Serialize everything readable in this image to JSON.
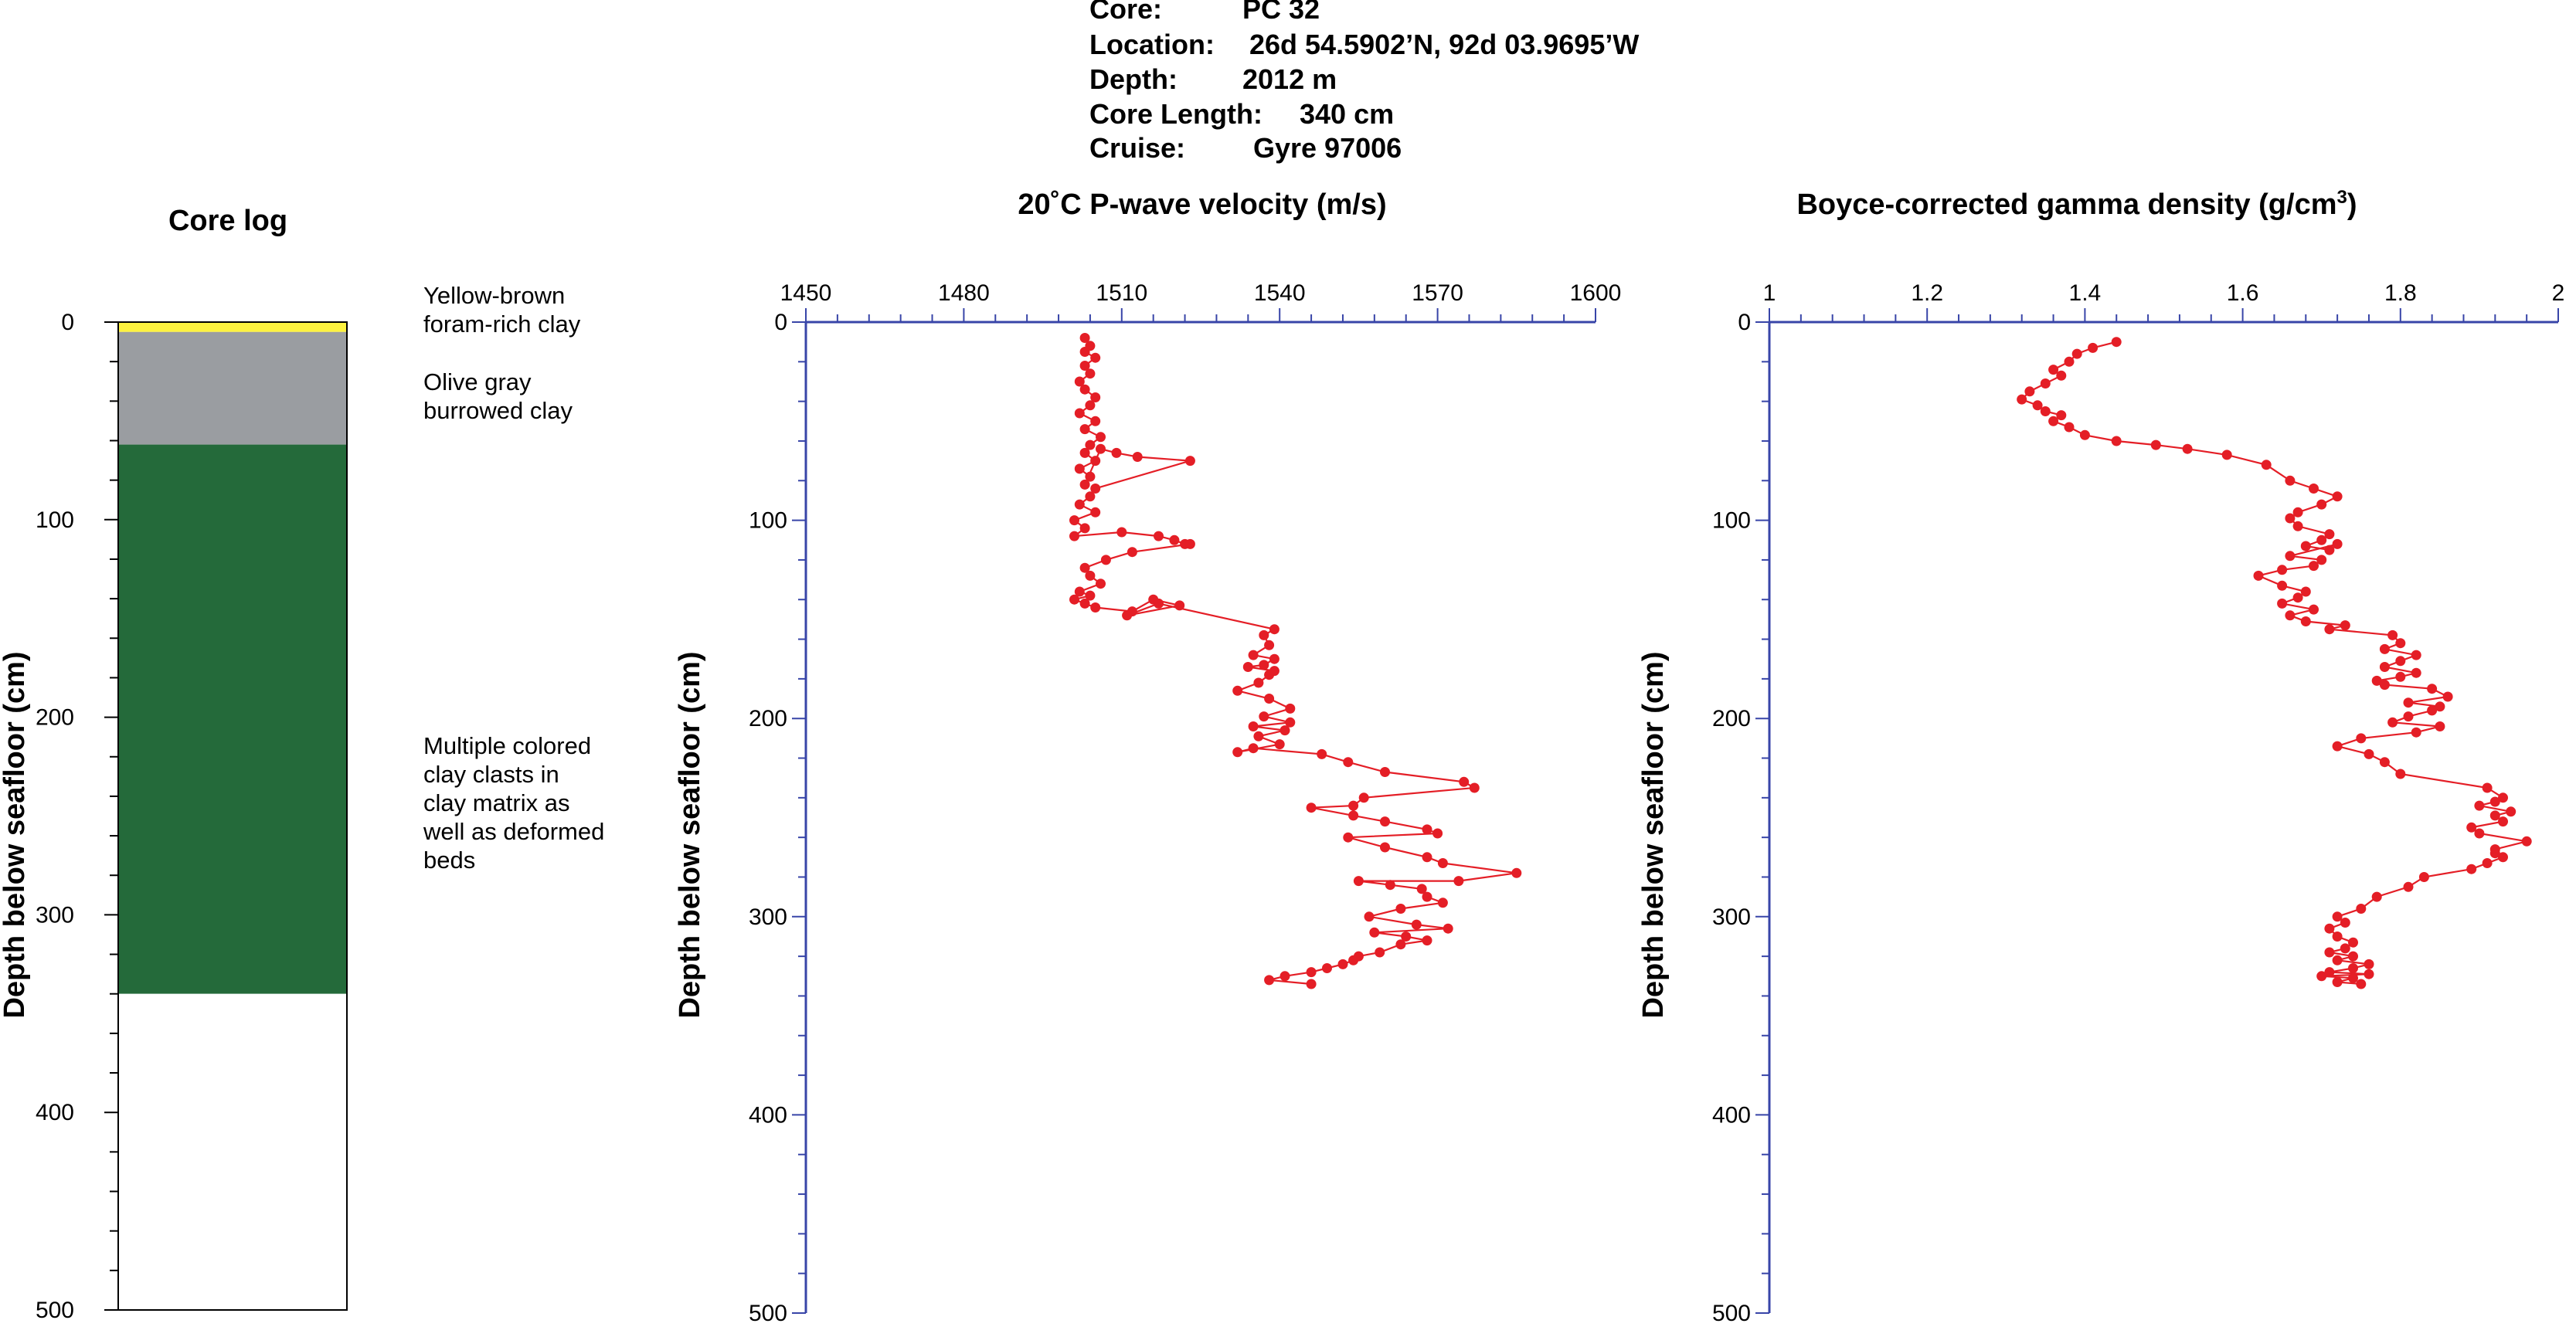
{
  "header": {
    "lines": [
      {
        "label": "Core:",
        "value": "PC 32"
      },
      {
        "label": "Location:",
        "value": "26d 54.5902’N, 92d 03.9695’W"
      },
      {
        "label": "Depth:",
        "value": "2012 m"
      },
      {
        "label": "Core Length:",
        "value": "340 cm"
      },
      {
        "label": "Cruise:",
        "value": "Gyre 97006"
      }
    ]
  },
  "core_log": {
    "title": "Core log",
    "ylabel": "Depth below seafloor (cm)",
    "yticks": [
      "0",
      "100",
      "200",
      "300",
      "400",
      "500"
    ],
    "units": [
      {
        "top": 0,
        "bottom": 5,
        "color": "#fdf23f",
        "label": [
          "Yellow-brown",
          "foram-rich clay"
        ]
      },
      {
        "top": 5,
        "bottom": 62,
        "color": "#9a9da1",
        "label": [
          "Olive gray",
          "burrowed clay"
        ]
      },
      {
        "top": 62,
        "bottom": 340,
        "color": "#246a3a",
        "label": [
          "Multiple colored",
          "clay clasts in",
          "clay matrix as",
          "well as deformed",
          "beds"
        ]
      },
      {
        "top": 340,
        "bottom": 500,
        "color": "#ffffff",
        "label": []
      }
    ]
  },
  "chart_data": [
    {
      "type": "line",
      "title": "20˚C P-wave velocity (m/s)",
      "ylabel": "Depth below seafloor (cm)",
      "xlim": [
        1450,
        1600
      ],
      "ylim": [
        0,
        500
      ],
      "xticks": [
        "1450",
        "1480",
        "1510",
        "1540",
        "1570",
        "1600"
      ],
      "yticks": [
        "0",
        "100",
        "200",
        "300",
        "400",
        "500"
      ],
      "color": "#e41e26",
      "series": [
        {
          "x": [
            1503,
            1504,
            1503,
            1505,
            1503,
            1504,
            1502,
            1503,
            1505,
            1504,
            1502,
            1505,
            1503,
            1506,
            1504,
            1503,
            1505,
            1502,
            1504,
            1503,
            1506,
            1509,
            1513,
            1523,
            1505,
            1504,
            1502,
            1505,
            1501,
            1503,
            1501,
            1510,
            1517,
            1520,
            1522,
            1523,
            1512,
            1507,
            1503,
            1504,
            1506,
            1502,
            1504,
            1501,
            1503,
            1505,
            1512,
            1516,
            1521,
            1511,
            1517,
            1539,
            1537,
            1538,
            1535,
            1539,
            1537,
            1534,
            1539,
            1538,
            1536,
            1532,
            1538,
            1542,
            1537,
            1542,
            1535,
            1541,
            1536,
            1540,
            1532,
            1535,
            1548,
            1553,
            1560,
            1575,
            1577,
            1556,
            1554,
            1546,
            1554,
            1560,
            1568,
            1570,
            1553,
            1560,
            1568,
            1571,
            1585,
            1574,
            1555,
            1561,
            1567,
            1568,
            1571,
            1563,
            1557,
            1566,
            1572,
            1558,
            1564,
            1568,
            1563,
            1559,
            1555,
            1554,
            1552,
            1549,
            1546,
            1541,
            1538,
            1546
          ],
          "y": [
            8,
            12,
            15,
            18,
            22,
            26,
            30,
            34,
            38,
            42,
            46,
            50,
            54,
            58,
            62,
            66,
            70,
            74,
            78,
            82,
            64,
            66,
            68,
            70,
            84,
            88,
            92,
            96,
            100,
            104,
            108,
            106,
            108,
            110,
            112,
            112,
            116,
            120,
            124,
            128,
            132,
            136,
            138,
            140,
            142,
            144,
            146,
            140,
            143,
            148,
            142,
            155,
            158,
            163,
            168,
            170,
            173,
            174,
            176,
            178,
            182,
            186,
            190,
            195,
            199,
            202,
            204,
            206,
            209,
            213,
            217,
            215,
            218,
            222,
            227,
            232,
            235,
            240,
            244,
            245,
            249,
            252,
            256,
            258,
            260,
            265,
            270,
            273,
            278,
            282,
            282,
            284,
            286,
            290,
            293,
            296,
            300,
            304,
            306,
            308,
            310,
            312,
            314,
            318,
            320,
            322,
            324,
            326,
            328,
            330,
            332,
            334
          ]
        }
      ]
    },
    {
      "type": "line",
      "title": "Boyce-corrected gamma density (g/cm",
      "title_superscript": "3",
      "title_suffix": ")",
      "ylabel": "Depth below seafloor (cm)",
      "xlim": [
        1,
        2
      ],
      "ylim": [
        0,
        500
      ],
      "xticks": [
        "1",
        "1.2",
        "1.4",
        "1.6",
        "1.8",
        "2"
      ],
      "yticks": [
        "0",
        "100",
        "200",
        "300",
        "400",
        "500"
      ],
      "color": "#e41e26",
      "series": [
        {
          "x": [
            1.44,
            1.41,
            1.39,
            1.38,
            1.36,
            1.37,
            1.35,
            1.33,
            1.32,
            1.34,
            1.35,
            1.37,
            1.36,
            1.38,
            1.4,
            1.44,
            1.49,
            1.53,
            1.58,
            1.63,
            1.66,
            1.69,
            1.72,
            1.7,
            1.67,
            1.66,
            1.67,
            1.71,
            1.7,
            1.68,
            1.71,
            1.72,
            1.66,
            1.7,
            1.69,
            1.65,
            1.62,
            1.65,
            1.68,
            1.67,
            1.65,
            1.69,
            1.66,
            1.68,
            1.73,
            1.71,
            1.79,
            1.8,
            1.78,
            1.82,
            1.8,
            1.78,
            1.82,
            1.8,
            1.77,
            1.78,
            1.84,
            1.86,
            1.81,
            1.85,
            1.84,
            1.81,
            1.79,
            1.85,
            1.82,
            1.75,
            1.72,
            1.76,
            1.78,
            1.8,
            1.91,
            1.93,
            1.92,
            1.9,
            1.94,
            1.92,
            1.93,
            1.89,
            1.9,
            1.96,
            1.92,
            1.92,
            1.93,
            1.91,
            1.89,
            1.83,
            1.81,
            1.77,
            1.75,
            1.72,
            1.73,
            1.71,
            1.72,
            1.74,
            1.73,
            1.71,
            1.74,
            1.72,
            1.76,
            1.74,
            1.71,
            1.76,
            1.7,
            1.74,
            1.72,
            1.75
          ],
          "y": [
            10,
            13,
            16,
            20,
            24,
            27,
            31,
            35,
            39,
            42,
            45,
            47,
            50,
            53,
            57,
            60,
            62,
            64,
            67,
            72,
            80,
            84,
            88,
            92,
            96,
            99,
            103,
            107,
            110,
            113,
            115,
            112,
            118,
            120,
            123,
            125,
            128,
            133,
            136,
            139,
            142,
            145,
            148,
            151,
            153,
            155,
            158,
            162,
            165,
            168,
            171,
            174,
            177,
            179,
            181,
            183,
            185,
            189,
            192,
            194,
            196,
            199,
            202,
            204,
            207,
            210,
            214,
            218,
            222,
            228,
            235,
            240,
            242,
            244,
            247,
            249,
            252,
            255,
            258,
            262,
            266,
            268,
            270,
            273,
            276,
            280,
            285,
            290,
            296,
            300,
            303,
            306,
            310,
            313,
            316,
            318,
            320,
            322,
            324,
            326,
            328,
            329,
            330,
            331,
            333,
            334
          ]
        }
      ]
    }
  ]
}
